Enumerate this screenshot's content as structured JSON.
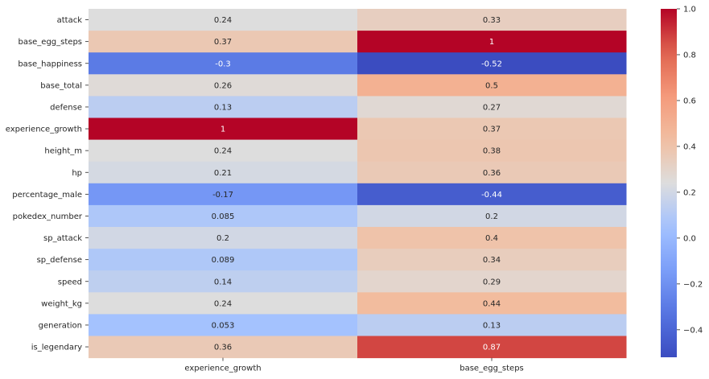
{
  "chart_data": {
    "type": "heatmap",
    "title": "",
    "xlabel": "",
    "ylabel": "",
    "columns": [
      "experience_growth",
      "base_egg_steps"
    ],
    "rows": [
      "attack",
      "base_egg_steps",
      "base_happiness",
      "base_total",
      "defense",
      "experience_growth",
      "height_m",
      "hp",
      "percentage_male",
      "pokedex_number",
      "sp_attack",
      "sp_defense",
      "speed",
      "weight_kg",
      "generation",
      "is_legendary"
    ],
    "values": [
      [
        0.24,
        0.33
      ],
      [
        0.37,
        1
      ],
      [
        -0.3,
        -0.52
      ],
      [
        0.26,
        0.5
      ],
      [
        0.13,
        0.27
      ],
      [
        1,
        0.37
      ],
      [
        0.24,
        0.38
      ],
      [
        0.21,
        0.36
      ],
      [
        -0.17,
        -0.44
      ],
      [
        0.085,
        0.2
      ],
      [
        0.2,
        0.4
      ],
      [
        0.089,
        0.34
      ],
      [
        0.14,
        0.29
      ],
      [
        0.24,
        0.44
      ],
      [
        0.053,
        0.13
      ],
      [
        0.36,
        0.87
      ]
    ],
    "labels": [
      [
        "0.24",
        "0.33"
      ],
      [
        "0.37",
        "1"
      ],
      [
        "-0.3",
        "-0.52"
      ],
      [
        "0.26",
        "0.5"
      ],
      [
        "0.13",
        "0.27"
      ],
      [
        "1",
        "0.37"
      ],
      [
        "0.24",
        "0.38"
      ],
      [
        "0.21",
        "0.36"
      ],
      [
        "-0.17",
        "-0.44"
      ],
      [
        "0.085",
        "0.2"
      ],
      [
        "0.2",
        "0.4"
      ],
      [
        "0.089",
        "0.34"
      ],
      [
        "0.14",
        "0.29"
      ],
      [
        "0.24",
        "0.44"
      ],
      [
        "0.053",
        "0.13"
      ],
      [
        "0.36",
        "0.87"
      ]
    ],
    "colormap": "coolwarm",
    "vmin": -0.52,
    "vmax": 1.0,
    "colorbar_ticks": [
      -0.4,
      -0.2,
      0.0,
      0.2,
      0.4,
      0.6,
      0.8,
      1.0
    ],
    "colorbar_tick_labels": [
      "−0.4",
      "−0.2",
      "0.0",
      "0.2",
      "0.4",
      "0.6",
      "0.8",
      "1.0"
    ],
    "colorbar_placement": "right",
    "grid": false
  }
}
